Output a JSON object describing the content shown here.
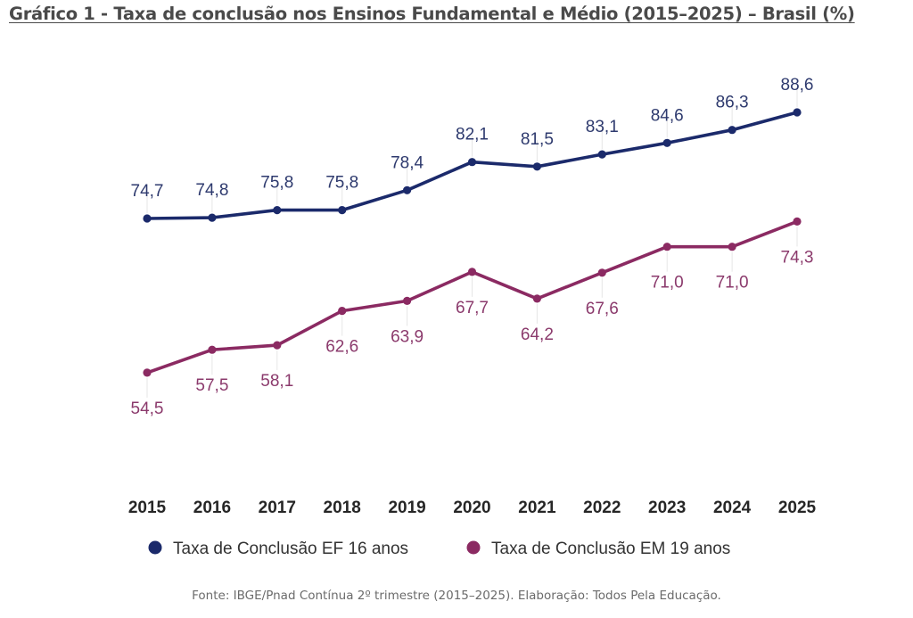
{
  "chart_data": {
    "type": "line",
    "title": "Gráfico 1 - Taxa de conclusão nos Ensinos Fundamental e Médio (2015–2025) – Brasil (%)",
    "xlabel": "",
    "ylabel": "",
    "categories": [
      "2015",
      "2016",
      "2017",
      "2018",
      "2019",
      "2020",
      "2021",
      "2022",
      "2023",
      "2024",
      "2025"
    ],
    "series": [
      {
        "name": "Taxa de Conclusão EF 16 anos",
        "color": "#1b2a6b",
        "label_position": "above",
        "values": [
          74.7,
          74.8,
          75.8,
          75.8,
          78.4,
          82.1,
          81.5,
          83.1,
          84.6,
          86.3,
          88.6
        ],
        "labels": [
          "74,7",
          "74,8",
          "75,8",
          "75,8",
          "78,4",
          "82,1",
          "81,5",
          "83,1",
          "84,6",
          "86,3",
          "88,6"
        ]
      },
      {
        "name": "Taxa de Conclusão EM 19 anos",
        "color": "#8b2a62",
        "label_position": "below",
        "values": [
          54.5,
          57.5,
          58.1,
          62.6,
          63.9,
          67.7,
          64.2,
          67.6,
          71.0,
          71.0,
          74.3
        ],
        "labels": [
          "54,5",
          "57,5",
          "58,1",
          "62,6",
          "63,9",
          "67,7",
          "64,2",
          "67,6",
          "71,0",
          "71,0",
          "74,3"
        ]
      }
    ],
    "grid": false,
    "y_axis_visible": false,
    "legend": "bottom-center",
    "source": "Fonte: IBGE/Pnad Contínua 2º trimestre (2015–2025). Elaboração: Todos Pela Educação."
  }
}
